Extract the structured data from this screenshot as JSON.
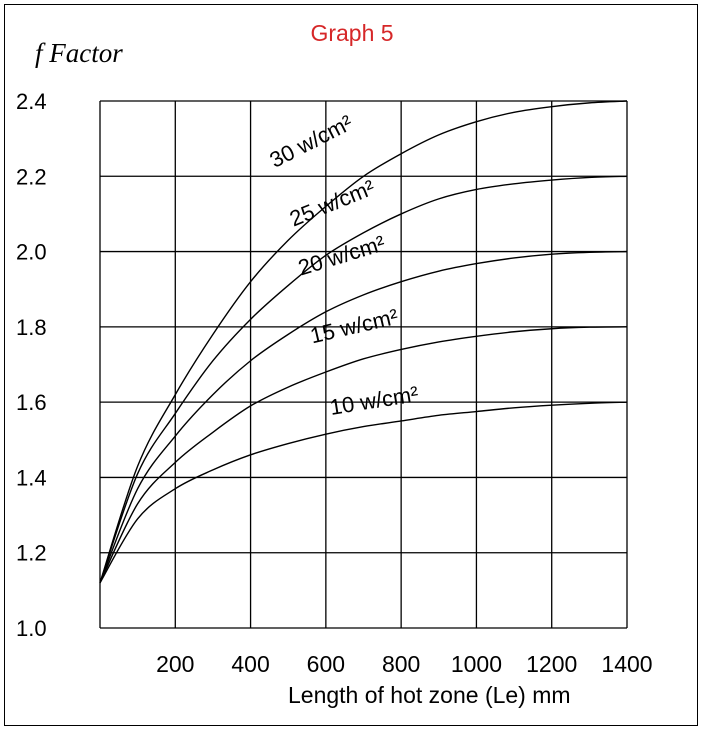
{
  "chart_data": {
    "type": "line",
    "title": "Graph 5",
    "ylabel": "f Factor",
    "xlabel": "Length of hot zone (Le) mm",
    "xlim": [
      0,
      1400
    ],
    "ylim": [
      1.0,
      2.4
    ],
    "xticks": [
      200,
      400,
      600,
      800,
      1000,
      1200,
      1400
    ],
    "yticks": [
      1.0,
      1.2,
      1.4,
      1.6,
      1.8,
      2.0,
      2.2,
      2.4
    ],
    "ytick_labels": [
      "1.0",
      "1.2",
      "1.4",
      "1.6",
      "1.8",
      "2.0",
      "2.2",
      "2.4"
    ],
    "grid": true,
    "series": [
      {
        "name": "10 w/cm²",
        "x": [
          0,
          100,
          200,
          300,
          400,
          500,
          600,
          700,
          800,
          900,
          1000,
          1100,
          1200,
          1300,
          1400
        ],
        "y": [
          1.12,
          1.29,
          1.37,
          1.42,
          1.46,
          1.49,
          1.515,
          1.535,
          1.55,
          1.565,
          1.575,
          1.585,
          1.592,
          1.597,
          1.6
        ]
      },
      {
        "name": "15 w/cm²",
        "x": [
          0,
          100,
          200,
          300,
          400,
          500,
          600,
          700,
          800,
          900,
          1000,
          1100,
          1200,
          1300,
          1400
        ],
        "y": [
          1.12,
          1.33,
          1.44,
          1.52,
          1.59,
          1.64,
          1.68,
          1.715,
          1.74,
          1.76,
          1.775,
          1.787,
          1.795,
          1.799,
          1.8
        ]
      },
      {
        "name": "20 w/cm²",
        "x": [
          0,
          100,
          200,
          300,
          400,
          500,
          600,
          700,
          800,
          900,
          1000,
          1100,
          1200,
          1300,
          1400
        ],
        "y": [
          1.12,
          1.37,
          1.51,
          1.62,
          1.71,
          1.78,
          1.84,
          1.885,
          1.92,
          1.948,
          1.968,
          1.983,
          1.993,
          1.998,
          2.0
        ]
      },
      {
        "name": "25 w/cm²",
        "x": [
          0,
          100,
          200,
          300,
          400,
          500,
          600,
          700,
          800,
          900,
          1000,
          1100,
          1200,
          1300,
          1400
        ],
        "y": [
          1.12,
          1.41,
          1.57,
          1.71,
          1.82,
          1.91,
          1.99,
          2.05,
          2.1,
          2.14,
          2.165,
          2.18,
          2.19,
          2.197,
          2.2
        ]
      },
      {
        "name": "30 w/cm²",
        "x": [
          0,
          100,
          200,
          300,
          400,
          500,
          600,
          700,
          800,
          900,
          1000,
          1100,
          1200,
          1300,
          1400
        ],
        "y": [
          1.12,
          1.43,
          1.62,
          1.78,
          1.92,
          2.03,
          2.12,
          2.2,
          2.26,
          2.31,
          2.345,
          2.37,
          2.385,
          2.395,
          2.4
        ]
      }
    ]
  }
}
